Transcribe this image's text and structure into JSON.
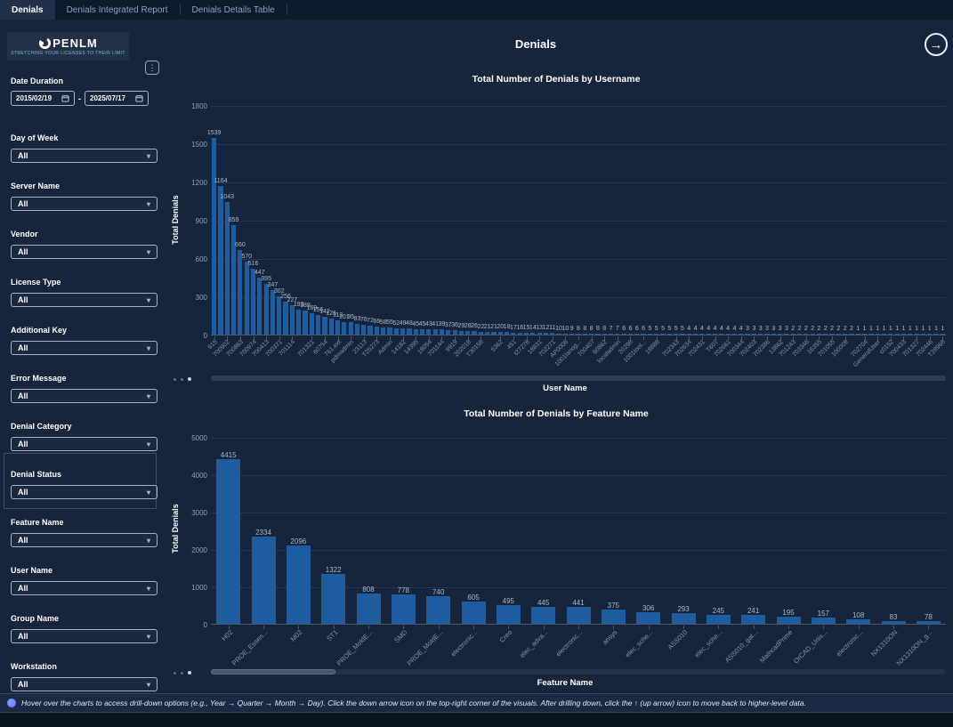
{
  "tabs": [
    {
      "label": "Denials",
      "active": true
    },
    {
      "label": "Denials Integrated Report",
      "active": false
    },
    {
      "label": "Denials Details Table",
      "active": false
    }
  ],
  "header": {
    "title": "Denials"
  },
  "logo": {
    "text": "PENLM",
    "tagline": "STRETCHING YOUR LICENSES TO THEIR LIMIT"
  },
  "sidebar": {
    "date_filter": {
      "label": "Date Duration",
      "start": "2015/02/19",
      "end": "2025/07/17",
      "separator": "-"
    },
    "filters": [
      {
        "label": "Day of Week",
        "value": "All"
      },
      {
        "label": "Server Name",
        "value": "All"
      },
      {
        "label": "Vendor",
        "value": "All"
      },
      {
        "label": "License Type",
        "value": "All"
      },
      {
        "label": "Additional Key",
        "value": "All"
      },
      {
        "label": "Error Message",
        "value": "All"
      },
      {
        "label": "Denial Category",
        "value": "All"
      },
      {
        "label": "Denial Status",
        "value": "All",
        "highlighted": true
      },
      {
        "label": "Feature Name",
        "value": "All"
      },
      {
        "label": "User Name",
        "value": "All"
      },
      {
        "label": "Group Name",
        "value": "All"
      },
      {
        "label": "Workstation",
        "value": "All"
      }
    ]
  },
  "icons": {
    "kebab": "⋮",
    "chevron": "▾",
    "arrow_right": "→"
  },
  "chart_data": [
    {
      "type": "bar",
      "title": "Total Number of Denials by Username",
      "xlabel": "User Name",
      "ylabel": "Total Denials",
      "ylim": [
        0,
        1800
      ],
      "yticks": [
        0,
        300,
        600,
        900,
        1200,
        1500,
        1800
      ],
      "grid": true,
      "legend": false,
      "bar_color": "#1d5c9e",
      "values": [
        1539,
        1164,
        1043,
        859,
        660,
        570,
        516,
        447,
        395,
        347,
        302,
        256,
        227,
        193,
        189,
        169,
        156,
        142,
        126,
        113,
        101,
        95,
        83,
        76,
        72,
        66,
        58,
        55,
        52,
        49,
        48,
        45,
        45,
        43,
        41,
        39,
        37,
        36,
        29,
        28,
        26,
        22,
        21,
        21,
        20,
        18,
        17,
        16,
        15,
        14,
        13,
        12,
        11,
        10,
        10,
        9,
        8,
        8,
        8,
        8,
        8,
        7,
        7,
        6,
        6,
        6,
        6,
        5,
        5,
        5,
        5,
        5,
        5,
        4,
        4,
        4,
        4,
        4,
        4,
        4,
        4,
        4,
        3,
        3,
        3,
        3,
        3,
        3,
        3,
        2,
        2,
        2,
        2,
        2,
        2,
        2,
        2,
        2,
        2,
        1,
        1,
        1,
        1,
        1,
        1,
        1,
        1,
        1,
        1,
        1,
        1,
        1,
        1
      ],
      "x_tick_labels_sampled": [
        "915",
        "700902",
        "700863",
        "700974",
        "700413",
        "700371",
        "701114",
        "701321",
        "60754",
        "761.ext",
        "pdmadmin",
        "23113",
        "T25273",
        "Admin",
        "14182",
        "14395",
        "18054",
        "701144",
        "9919",
        "202018",
        "T30158",
        "5362",
        "451",
        "t27278",
        "18831",
        "702271",
        "AP0006",
        "1001lanog...",
        "700407",
        "60862",
        "localadmin",
        "20298",
        "1001tool...",
        "18888",
        "702343",
        "702634",
        "702431",
        "T607",
        "702661",
        "700344",
        "702403",
        "702386",
        "13862",
        "701243",
        "703346",
        "16355",
        "701055",
        "100009",
        "702704",
        "GeneralUser",
        "c0152",
        "700433",
        "701327",
        "702446",
        "T28968"
      ]
    },
    {
      "type": "bar",
      "title": "Total Number of Denials by Feature Name",
      "xlabel": "Feature Name",
      "ylabel": "Total Denials",
      "ylim": [
        0,
        5000
      ],
      "yticks": [
        0,
        1000,
        2000,
        3000,
        4000,
        5000
      ],
      "grid": true,
      "legend": false,
      "bar_color": "#1d5c9e",
      "categories": [
        "H02",
        "PROE_Essen...",
        "M02",
        "ST1",
        "PROE_MoldE...",
        "SMD",
        "PROE_MoldE...",
        "electronic...",
        "Creo",
        "elec_adva...",
        "electronic...",
        "ansys",
        "elec_sche...",
        "ASS010",
        "elec_sche...",
        "ASS010_gat...",
        "MathcadPrime",
        "OrCAD_Unis...",
        "electronic...",
        "NX1310ON",
        "NX1310ON_g..."
      ],
      "values": [
        4415,
        2334,
        2096,
        1322,
        808,
        778,
        740,
        605,
        495,
        445,
        441,
        375,
        306,
        293,
        245,
        241,
        195,
        157,
        108,
        83,
        78
      ]
    }
  ],
  "footer": {
    "note": "Hover over the charts to access drill-down options (e.g., Year → Quarter → Month → Day). Click the down arrow icon on the top-right corner of the visuals. After drilling down, click the ↑ (up arrow) icon to move back to higher-level data."
  },
  "colors": {
    "background": "#16253c",
    "tab_bar": "#0c1a2b",
    "active_tab": "#20304b",
    "bar": "#1d5c9e",
    "value_label": "#a7b7c9",
    "axis_text": "#8ba0b8",
    "title_text": "#ffffff"
  }
}
